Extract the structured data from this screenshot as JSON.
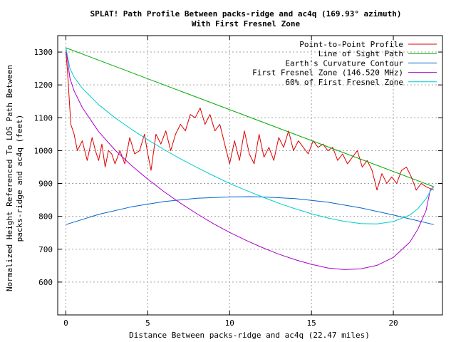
{
  "chart_data": {
    "type": "line",
    "title": "SPLAT! Path Profile Between packs-ridge and ac4q (169.93° azimuth)",
    "subtitle": "With First Fresnel Zone",
    "xlabel": "Distance Between packs-ridge and ac4q (22.47 miles)",
    "ylabel_line1": "Normalized Height Referenced To LOS Path Between",
    "ylabel_line2": "packs-ridge and ac4q (feet)",
    "xlim": [
      -0.5,
      23.0
    ],
    "ylim": [
      500,
      1350
    ],
    "x_ticks": [
      0,
      5,
      10,
      15,
      20
    ],
    "y_ticks": [
      600,
      700,
      800,
      900,
      1000,
      1100,
      1200,
      1300
    ],
    "grid": true,
    "legend_position": "top-right",
    "series": [
      {
        "name": "Point-to-Point Profile",
        "color": "#dd0000",
        "x": [
          0,
          0.1,
          0.2,
          0.3,
          0.5,
          0.7,
          1.0,
          1.3,
          1.6,
          1.8,
          2.0,
          2.2,
          2.4,
          2.6,
          2.8,
          3.0,
          3.3,
          3.6,
          3.9,
          4.2,
          4.5,
          4.8,
          5.0,
          5.2,
          5.5,
          5.8,
          6.1,
          6.4,
          6.7,
          7.0,
          7.3,
          7.6,
          7.9,
          8.2,
          8.5,
          8.8,
          9.1,
          9.4,
          9.7,
          10.0,
          10.3,
          10.6,
          10.9,
          11.2,
          11.5,
          11.8,
          12.1,
          12.4,
          12.7,
          13.0,
          13.3,
          13.6,
          13.9,
          14.2,
          14.5,
          14.8,
          15.1,
          15.4,
          15.7,
          16.0,
          16.3,
          16.6,
          16.9,
          17.2,
          17.5,
          17.8,
          18.1,
          18.4,
          18.7,
          19.0,
          19.3,
          19.6,
          19.9,
          20.2,
          20.5,
          20.8,
          21.1,
          21.4,
          21.7,
          22.0,
          22.47
        ],
        "values": [
          1300,
          1240,
          1160,
          1080,
          1050,
          1000,
          1030,
          970,
          1040,
          1000,
          970,
          1020,
          950,
          1000,
          990,
          960,
          1000,
          960,
          1040,
          990,
          1000,
          1050,
          990,
          940,
          1050,
          1020,
          1060,
          1000,
          1050,
          1080,
          1060,
          1110,
          1100,
          1130,
          1080,
          1110,
          1060,
          1080,
          1020,
          960,
          1030,
          970,
          1060,
          990,
          960,
          1050,
          980,
          1010,
          970,
          1040,
          1010,
          1060,
          1000,
          1030,
          1010,
          990,
          1030,
          1010,
          1020,
          1000,
          1010,
          970,
          990,
          960,
          980,
          1000,
          950,
          970,
          940,
          880,
          930,
          900,
          920,
          900,
          940,
          950,
          920,
          880,
          900,
          890,
          880
        ]
      },
      {
        "name": "Line of Sight Path",
        "color": "#00aa00",
        "x": [
          0,
          22.47
        ],
        "values": [
          1313,
          890
        ]
      },
      {
        "name": "Earth's Curvature Contour",
        "color": "#0066cc",
        "x": [
          0,
          2,
          4,
          6,
          8,
          10,
          11.2,
          12,
          14,
          16,
          18,
          20,
          22.47
        ],
        "values": [
          775,
          806,
          829,
          845,
          855,
          859,
          860,
          859,
          854,
          843,
          826,
          804,
          775
        ]
      },
      {
        "name": "First Fresnel Zone (146.520 MHz)",
        "color": "#aa00cc",
        "x": [
          0,
          0.25,
          0.5,
          1,
          2,
          3,
          4,
          5,
          6,
          7,
          8,
          9,
          10,
          11,
          12,
          13,
          14,
          15,
          16,
          17,
          18,
          19,
          20,
          21,
          21.5,
          22,
          22.25,
          22.47
        ],
        "values": [
          1313,
          1220,
          1182,
          1131,
          1058,
          1002,
          955,
          913,
          875,
          840,
          808,
          778,
          751,
          727,
          705,
          685,
          668,
          654,
          643,
          638,
          640,
          651,
          675,
          721,
          761,
          818,
          880,
          890
        ]
      },
      {
        "name": "60% of First Fresnel Zone",
        "color": "#00cccc",
        "x": [
          0,
          0.25,
          0.5,
          1,
          2,
          3,
          4,
          5,
          6,
          7,
          8,
          9,
          10,
          11,
          12,
          13,
          14,
          15,
          16,
          17,
          18,
          19,
          20,
          21,
          21.5,
          22,
          22.25,
          22.47
        ],
        "values": [
          1313,
          1250,
          1224,
          1190,
          1140,
          1100,
          1065,
          1033,
          1003,
          975,
          949,
          924,
          900,
          879,
          859,
          840,
          823,
          808,
          795,
          785,
          778,
          777,
          784,
          804,
          823,
          854,
          876,
          890
        ]
      }
    ]
  }
}
